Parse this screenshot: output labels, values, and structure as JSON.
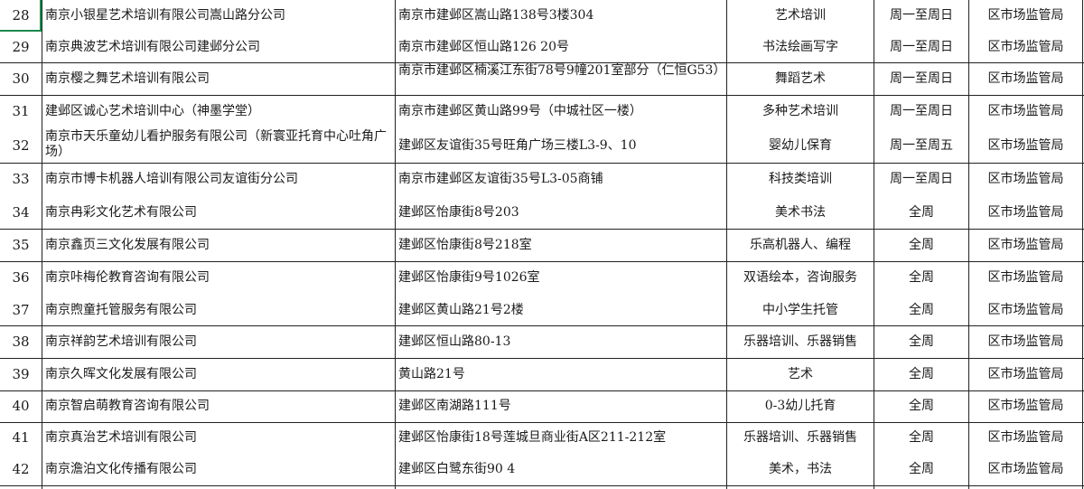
{
  "sheet": {
    "selection_color": "#1e8a4f",
    "rows": [
      {
        "no": "28",
        "name": "南京小银星艺术培训有限公司嵩山路分公司",
        "address": "南京市建邺区嵩山路138号3楼304",
        "category": "艺术培训",
        "hours": "周一至周日",
        "authority": "区市场监管局"
      },
      {
        "no": "29",
        "name": "南京典波艺术培训有限公司建邺分公司",
        "address": "南京市建邺区恒山路126 20号",
        "category": "书法绘画写字",
        "hours": "周一至周日",
        "authority": "区市场监管局"
      },
      {
        "no": "30",
        "name": "南京樱之舞艺术培训有限公司",
        "address": "南京市建邺区楠溪江东街78号9幢201室部分（仁恒G53）",
        "category": "舞蹈艺术",
        "hours": "周一至周日",
        "authority": "区市场监管局"
      },
      {
        "no": "31",
        "name": "建邺区诚心艺术培训中心（神墨学堂）",
        "address": "南京市建邺区黄山路99号（中城社区一楼）",
        "category": "多种艺术培训",
        "hours": "周一至周日",
        "authority": "区市场监管局"
      },
      {
        "no": "32",
        "name": "南京市天乐童幼儿看护服务有限公司（新寰亚托育中心吐角广场）",
        "address": "建邺区友谊街35号旺角广场三楼L3-9、10",
        "category": "婴幼儿保育",
        "hours": "周一至周五",
        "authority": "区市场监管局"
      },
      {
        "no": "33",
        "name": "南京市博卡机器人培训有限公司友谊街分公司",
        "address": "南京市建邺区友谊街35号L3-05商铺",
        "category": "科技类培训",
        "hours": "周一至周日",
        "authority": "区市场监管局"
      },
      {
        "no": "34",
        "name": "南京冉彩文化艺术有限公司",
        "address": "建邺区怡康街8号203",
        "category": "美术书法",
        "hours": "全周",
        "authority": "区市场监管局"
      },
      {
        "no": "35",
        "name": "南京鑫页三文化发展有限公司",
        "address": "建邺区怡康街8号218室",
        "category": "乐高机器人、编程",
        "hours": "全周",
        "authority": "区市场监管局"
      },
      {
        "no": "36",
        "name": "南京咔梅伦教育咨询有限公司",
        "address": "建邺区怡康街9号1026室",
        "category": "双语绘本，咨询服务",
        "hours": "全周",
        "authority": "区市场监管局"
      },
      {
        "no": "37",
        "name": "南京煦童托管服务有限公司",
        "address": "建邺区黄山路21号2楼",
        "category": "中小学生托管",
        "hours": "全周",
        "authority": "区市场监管局"
      },
      {
        "no": "38",
        "name": "南京祥韵艺术培训有限公司",
        "address": "建邺区恒山路80-13",
        "category": "乐器培训、乐器销售",
        "hours": "全周",
        "authority": "区市场监管局"
      },
      {
        "no": "39",
        "name": "南京久晖文化发展有限公司",
        "address": "黄山路21号",
        "category": "艺术",
        "hours": "全周",
        "authority": "区市场监管局"
      },
      {
        "no": "40",
        "name": "南京智启萌教育咨询有限公司",
        "address": "建邺区南湖路111号",
        "category": "0-3幼儿托育",
        "hours": "全周",
        "authority": "区市场监管局"
      },
      {
        "no": "41",
        "name": "南京真治艺术培训有限公司",
        "address": "建邺区怡康街18号莲城旦商业街A区211-212室",
        "category": "乐器培训、乐器销售",
        "hours": "全周",
        "authority": "区市场监管局"
      },
      {
        "no": "42",
        "name": "南京澹泊文化传播有限公司",
        "address": "建邺区白鹭东街90 4",
        "category": "美术，书法",
        "hours": "全周",
        "authority": "区市场监管局"
      }
    ]
  }
}
